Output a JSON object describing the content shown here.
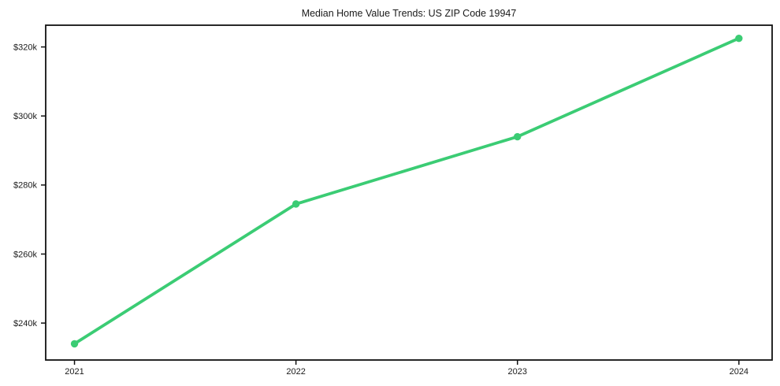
{
  "figure": {
    "background": "#ffffff"
  },
  "chart_data": {
    "type": "line",
    "title": "Median Home Value Trends: US ZIP Code 19947",
    "x": [
      2021,
      2022,
      2023,
      2024
    ],
    "x_tick_labels": [
      "2021",
      "2022",
      "2023",
      "2024"
    ],
    "values": [
      234000,
      274500,
      294000,
      322500
    ],
    "y_ticks": [
      240000,
      260000,
      280000,
      300000,
      320000
    ],
    "y_tick_labels": [
      "$240k",
      "$260k",
      "$280k",
      "$300k",
      "$320k"
    ],
    "xlim": [
      2020.87,
      2024.15
    ],
    "ylim": [
      229300,
      326300
    ],
    "grid": false,
    "legend": "none",
    "marker": "circle",
    "line_color": "#3bcc74",
    "axis_color": "#111111",
    "text_color": "#1a1a1a",
    "plot_background": "#ffffff"
  }
}
